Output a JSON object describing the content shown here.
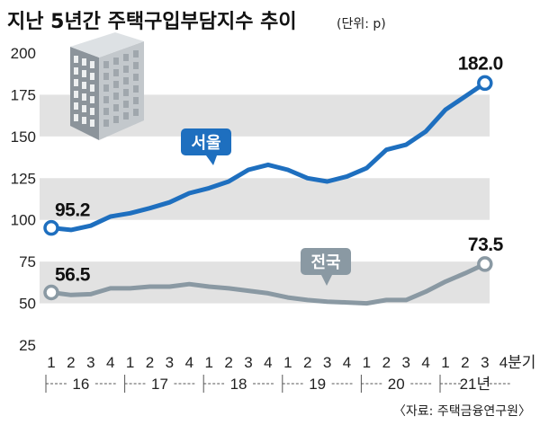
{
  "chart_data": {
    "type": "line",
    "title": "지난 5년간 주택구입부담지수 추이",
    "unit": "(단위: p)",
    "source": "〈자료: 주택금융연구원〉",
    "ylim": [
      25,
      200
    ],
    "yticks": [
      "25",
      "50",
      "75",
      "100",
      "125",
      "150",
      "175",
      "200"
    ],
    "quarter_labels": [
      "1",
      "2",
      "3",
      "4",
      "1",
      "2",
      "3",
      "4",
      "1",
      "2",
      "3",
      "4",
      "1",
      "2",
      "3",
      "4",
      "1",
      "2",
      "3",
      "4",
      "1",
      "2",
      "3",
      "4분기"
    ],
    "years": [
      "16",
      "17",
      "18",
      "19",
      "20",
      "21년"
    ],
    "series": [
      {
        "name": "서울",
        "color": "#1e6fbf",
        "values": [
          95.2,
          94.0,
          96.5,
          102.0,
          104.0,
          107.0,
          110.5,
          116.0,
          119.0,
          123.0,
          130.0,
          133.0,
          130.0,
          125.0,
          123.0,
          126.0,
          131.0,
          142.0,
          145.0,
          153.0,
          166.0,
          174.0,
          182.0
        ],
        "first_label": "95.2",
        "last_label": "182.0"
      },
      {
        "name": "전국",
        "color": "#8a99a3",
        "values": [
          56.5,
          55.0,
          55.5,
          59.0,
          59.0,
          60.0,
          60.0,
          61.5,
          60.0,
          59.0,
          57.5,
          56.0,
          53.5,
          52.0,
          51.0,
          50.5,
          50.0,
          52.0,
          52.0,
          57.0,
          63.0,
          68.0,
          73.5
        ],
        "first_label": "56.5",
        "last_label": "73.5"
      }
    ],
    "grid": "alternating horizontal bands"
  }
}
